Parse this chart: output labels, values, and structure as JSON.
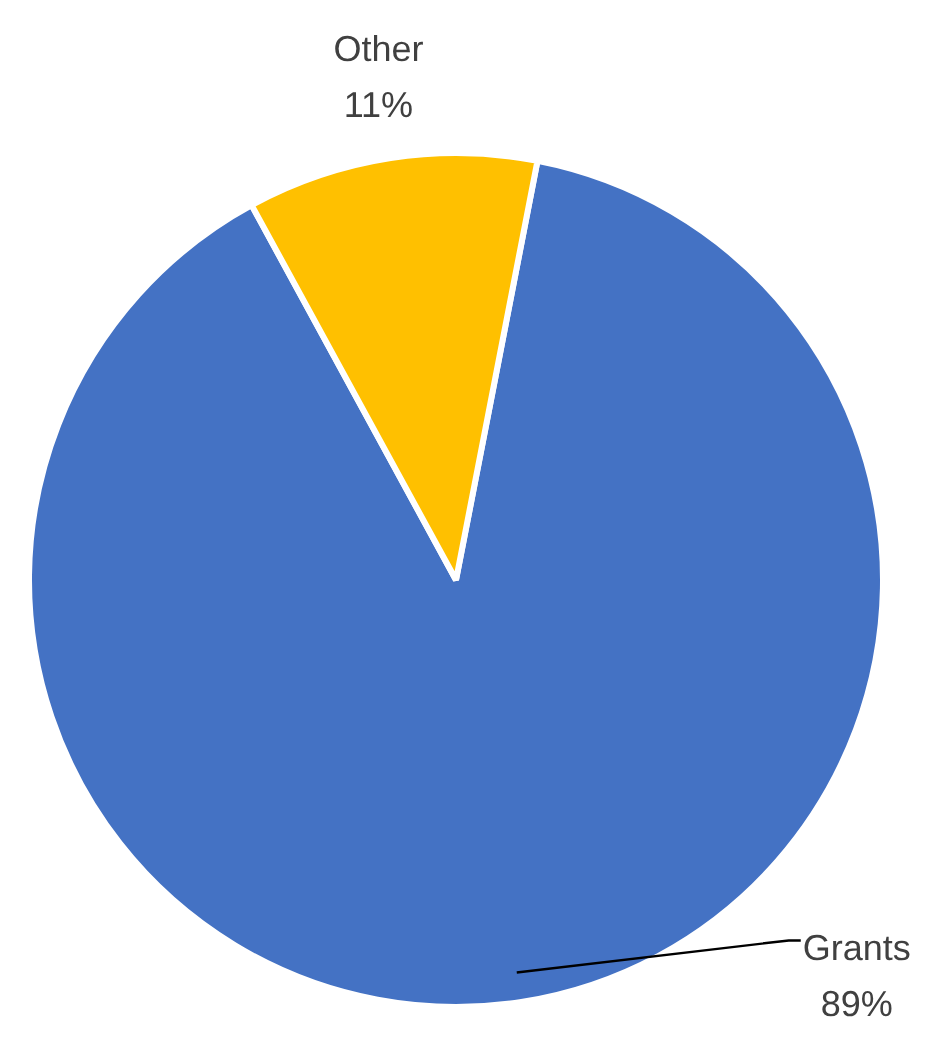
{
  "chart_data": {
    "type": "pie",
    "categories": [
      "Grants",
      "Other"
    ],
    "values": [
      89,
      11
    ],
    "colors": [
      "#4472c4",
      "#ffc000"
    ],
    "value_labels": [
      "89%",
      "11%"
    ],
    "legend": false
  }
}
